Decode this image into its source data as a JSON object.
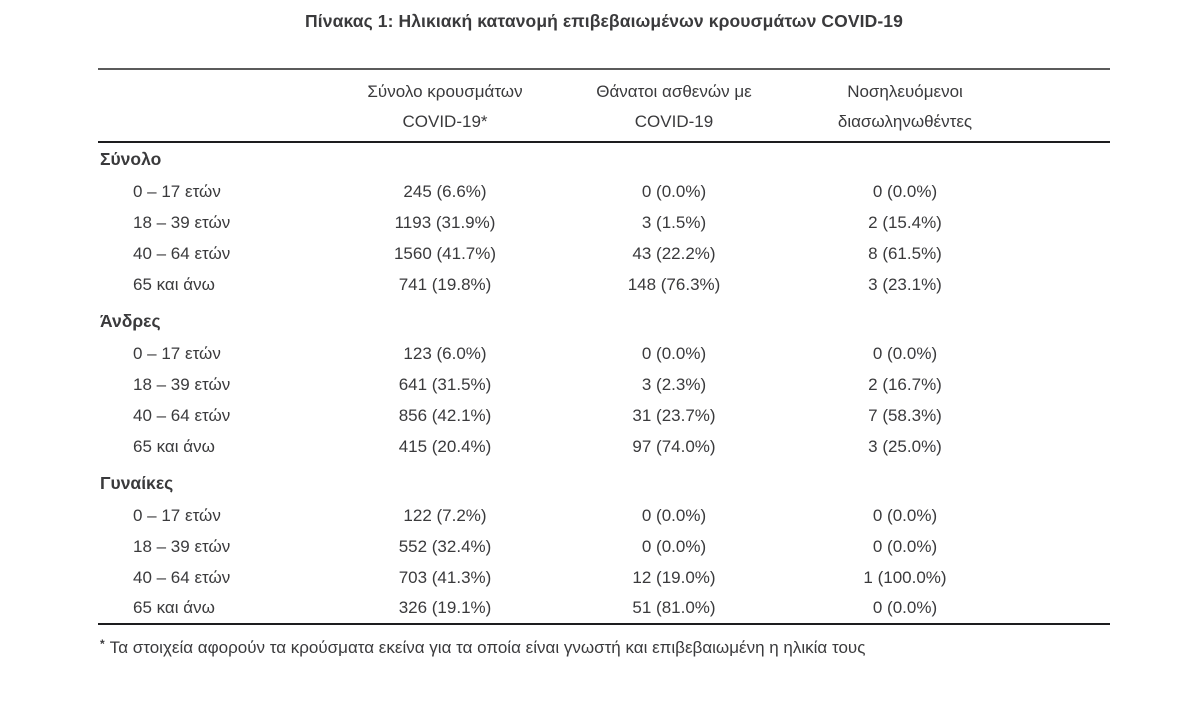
{
  "title": "Πίνακας 1: Ηλικιακή κατανομή επιβεβαιωμένων κρουσμάτων COVID-19",
  "colors": {
    "text": "#3a3a3c",
    "rule_top": "#5b5b5b",
    "rule_dark": "#1d1d1f"
  },
  "table": {
    "columns": [
      {
        "line1": "Σύνολο κρουσμάτων",
        "line2": "COVID-19*"
      },
      {
        "line1": "Θάνατοι ασθενών με",
        "line2": "COVID-19"
      },
      {
        "line1": "Νοσηλευόμενοι",
        "line2": "διασωληνωθέντες"
      }
    ],
    "sections": [
      {
        "label": "Σύνολο",
        "rows": [
          {
            "age": "0 – 17 ετών",
            "cases": "245 (6.6%)",
            "deaths": "0 (0.0%)",
            "intubated": "0 (0.0%)"
          },
          {
            "age": "18 – 39 ετών",
            "cases": "1193 (31.9%)",
            "deaths": "3 (1.5%)",
            "intubated": "2 (15.4%)"
          },
          {
            "age": "40 – 64 ετών",
            "cases": "1560 (41.7%)",
            "deaths": "43 (22.2%)",
            "intubated": "8 (61.5%)"
          },
          {
            "age": "65 και άνω",
            "cases": "741 (19.8%)",
            "deaths": "148 (76.3%)",
            "intubated": "3 (23.1%)"
          }
        ]
      },
      {
        "label": "Άνδρες",
        "rows": [
          {
            "age": "0 – 17 ετών",
            "cases": "123 (6.0%)",
            "deaths": "0 (0.0%)",
            "intubated": "0 (0.0%)"
          },
          {
            "age": "18 – 39 ετών",
            "cases": "641 (31.5%)",
            "deaths": "3 (2.3%)",
            "intubated": "2 (16.7%)"
          },
          {
            "age": "40 – 64 ετών",
            "cases": "856 (42.1%)",
            "deaths": "31 (23.7%)",
            "intubated": "7 (58.3%)"
          },
          {
            "age": "65 και άνω",
            "cases": "415 (20.4%)",
            "deaths": "97 (74.0%)",
            "intubated": "3 (25.0%)"
          }
        ]
      },
      {
        "label": "Γυναίκες",
        "rows": [
          {
            "age": "0 – 17 ετών",
            "cases": "122 (7.2%)",
            "deaths": "0 (0.0%)",
            "intubated": "0 (0.0%)"
          },
          {
            "age": "18 – 39 ετών",
            "cases": "552 (32.4%)",
            "deaths": "0 (0.0%)",
            "intubated": "0 (0.0%)"
          },
          {
            "age": "40 – 64 ετών",
            "cases": "703 (41.3%)",
            "deaths": "12 (19.0%)",
            "intubated": "1 (100.0%)"
          },
          {
            "age": "65 και άνω",
            "cases": "326 (19.1%)",
            "deaths": "51 (81.0%)",
            "intubated": "0 (0.0%)"
          }
        ]
      }
    ]
  },
  "footnote": {
    "marker": "*",
    "text": "Τα στοιχεία αφορούν τα κρούσματα εκείνα για τα οποία είναι γνωστή και επιβεβαιωμένη η ηλικία τους"
  }
}
